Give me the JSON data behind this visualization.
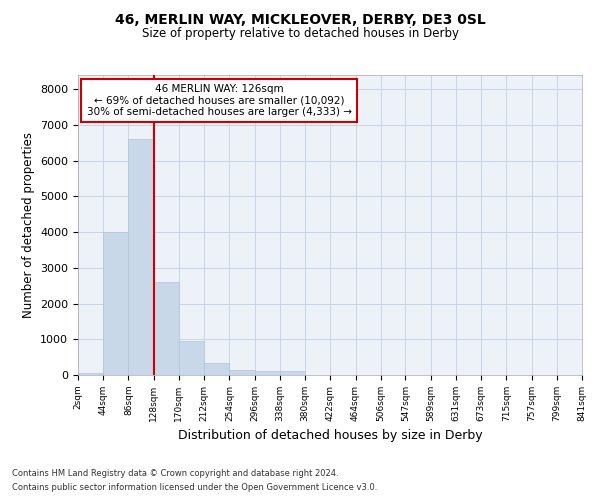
{
  "title1": "46, MERLIN WAY, MICKLEOVER, DERBY, DE3 0SL",
  "title2": "Size of property relative to detached houses in Derby",
  "xlabel": "Distribution of detached houses by size in Derby",
  "ylabel": "Number of detached properties",
  "footer1": "Contains HM Land Registry data © Crown copyright and database right 2024.",
  "footer2": "Contains public sector information licensed under the Open Government Licence v3.0.",
  "annotation_line1": "46 MERLIN WAY: 126sqm",
  "annotation_line2": "← 69% of detached houses are smaller (10,092)",
  "annotation_line3": "30% of semi-detached houses are larger (4,333) →",
  "vline_x": 128,
  "bar_color": "#c8d8e8",
  "bar_edge_color": "#b0c4d8",
  "grid_color": "#c8d4e4",
  "bg_color": "#edf1f8",
  "annotation_box_color": "#cc0000",
  "vline_color": "#cc0000",
  "bin_edges": [
    2,
    44,
    86,
    128,
    170,
    212,
    254,
    296,
    338,
    380,
    422,
    464,
    506,
    547,
    589,
    631,
    673,
    715,
    757,
    799,
    841
  ],
  "bin_labels": [
    "2sqm",
    "44sqm",
    "86sqm",
    "128sqm",
    "170sqm",
    "212sqm",
    "254sqm",
    "296sqm",
    "338sqm",
    "380sqm",
    "422sqm",
    "464sqm",
    "506sqm",
    "547sqm",
    "589sqm",
    "631sqm",
    "673sqm",
    "715sqm",
    "757sqm",
    "799sqm",
    "841sqm"
  ],
  "counts": [
    50,
    4000,
    6600,
    2600,
    950,
    330,
    150,
    100,
    100,
    0,
    0,
    0,
    0,
    0,
    0,
    0,
    0,
    0,
    0,
    0
  ],
  "ylim": [
    0,
    8400
  ],
  "yticks": [
    0,
    1000,
    2000,
    3000,
    4000,
    5000,
    6000,
    7000,
    8000
  ]
}
